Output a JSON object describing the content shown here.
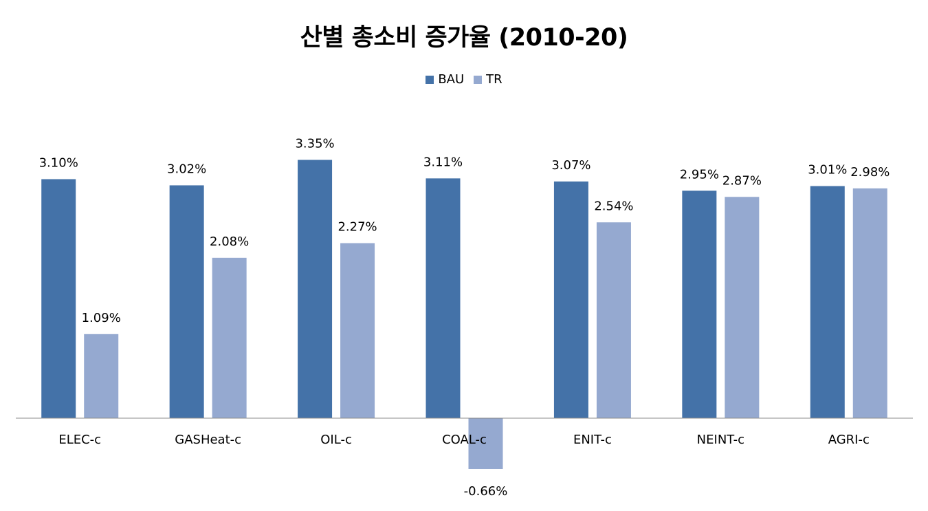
{
  "chart_data": {
    "type": "bar",
    "title": "산별 총소비 증가율 (2010-20)",
    "categories": [
      "ELEC-c",
      "GASHeat-c",
      "OIL-c",
      "COAL-c",
      "ENIT-c",
      "NEINT-c",
      "AGRI-c"
    ],
    "series": [
      {
        "name": "BAU",
        "values": [
          3.1,
          3.02,
          3.35,
          3.11,
          3.07,
          2.95,
          3.01
        ],
        "labels": [
          "3.10%",
          "3.02%",
          "3.35%",
          "3.11%",
          "3.07%",
          "2.95%",
          "3.01%"
        ],
        "color": "#4472A8"
      },
      {
        "name": "TR",
        "values": [
          1.09,
          2.08,
          2.27,
          -0.66,
          2.54,
          2.87,
          2.98
        ],
        "labels": [
          "1.09%",
          "2.08%",
          "2.27%",
          "-0.66%",
          "2.54%",
          "2.87%",
          "2.98%"
        ],
        "color": "#95A9D0"
      }
    ],
    "legend": "top-center",
    "grid": false,
    "xlabel": "",
    "ylabel": ""
  }
}
